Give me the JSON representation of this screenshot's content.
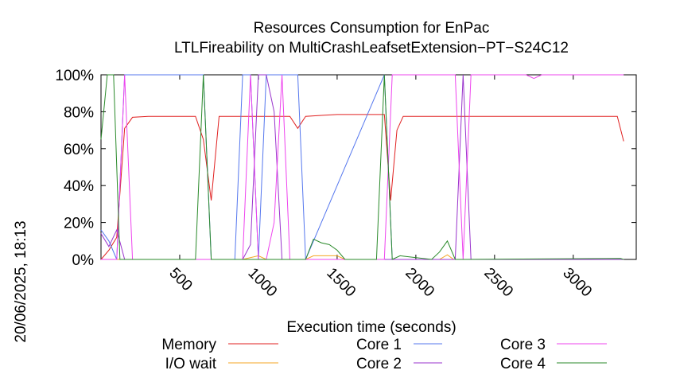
{
  "timestamp": "20/06/2025, 18:13",
  "chart_data": {
    "type": "line",
    "title": "Resources Consumption for EnPac",
    "subtitle": "LTLFireability on MultiCrashLeafsetExtension−PT−S24C12",
    "xlabel": "Execution time (seconds)",
    "ylabel": "",
    "xlim": [
      0,
      3400
    ],
    "ylim": [
      0,
      100
    ],
    "xticks": [
      500,
      1000,
      1500,
      2000,
      2500,
      3000
    ],
    "xtick_labels": [
      "500",
      "1000",
      "1500",
      "2000",
      "2500",
      "3000"
    ],
    "yticks": [
      0,
      20,
      40,
      60,
      80,
      100
    ],
    "ytick_labels": [
      "0%",
      "20%",
      "40%",
      "60%",
      "80%",
      "100%"
    ],
    "legend_placement": "bottom",
    "series": [
      {
        "name": "Memory",
        "color": "#e02020",
        "x": [
          0,
          50,
          100,
          150,
          200,
          300,
          400,
          500,
          600,
          650,
          700,
          750,
          800,
          900,
          1000,
          1100,
          1200,
          1250,
          1300,
          1400,
          1500,
          1600,
          1700,
          1800,
          1840,
          1880,
          1920,
          2000,
          2100,
          2200,
          2300,
          2400,
          2500,
          2600,
          2700,
          2800,
          2900,
          3000,
          3100,
          3200,
          3280,
          3320
        ],
        "y": [
          0,
          5,
          12,
          71,
          77,
          77.5,
          77.5,
          77.5,
          77.5,
          65,
          32,
          77.5,
          77.5,
          77.5,
          77.5,
          77.5,
          77.5,
          71,
          77.5,
          78,
          78.5,
          78.5,
          78.5,
          78.5,
          32,
          70,
          77.5,
          77.5,
          77.5,
          77.5,
          77.5,
          77.5,
          77.5,
          77.5,
          77.5,
          77.5,
          77.5,
          77.5,
          77.5,
          77.5,
          77.5,
          64
        ]
      },
      {
        "name": "I/O wait",
        "color": "#f5a623",
        "x": [
          0,
          100,
          900,
          1000,
          1050,
          1300,
          1350,
          1500,
          1550,
          2150,
          2200,
          2240,
          2300,
          3320
        ],
        "y": [
          0,
          0,
          0,
          2,
          0,
          0,
          2,
          2,
          0,
          0,
          2.5,
          0,
          0,
          0
        ]
      },
      {
        "name": "Core 1",
        "color": "#5577ee",
        "x": [
          0,
          50,
          100,
          150,
          200,
          650,
          700,
          850,
          900,
          950,
          1000,
          1050,
          1250,
          1300,
          1800,
          1850,
          1900,
          2350,
          2400,
          3320
        ],
        "y": [
          16,
          10,
          0,
          100,
          100,
          100,
          0,
          0,
          100,
          100,
          0,
          100,
          100,
          0,
          100,
          0,
          0,
          0,
          0,
          0
        ]
      },
      {
        "name": "Core 2",
        "color": "#9933cc",
        "x": [
          0,
          50,
          100,
          150,
          200,
          850,
          900,
          950,
          1000,
          1050,
          1100,
          1150,
          1200,
          1250,
          2250,
          2300,
          2350,
          3320
        ],
        "y": [
          14,
          7,
          16,
          0,
          0,
          0,
          0,
          8,
          100,
          100,
          80,
          0,
          0,
          0,
          0,
          100,
          0,
          0
        ]
      },
      {
        "name": "Core 3",
        "color": "#ee44ee",
        "x": [
          0,
          50,
          100,
          150,
          200,
          900,
          950,
          1000,
          1050,
          1100,
          1150,
          1200,
          1250,
          1800,
          1850,
          1900,
          2250,
          2300,
          2350,
          2700,
          2750,
          2800,
          3320
        ],
        "y": [
          0,
          0,
          0,
          100,
          0,
          0,
          100,
          0,
          0,
          20,
          100,
          0,
          0,
          0,
          100,
          100,
          100,
          0,
          100,
          100,
          98,
          100,
          100
        ]
      },
      {
        "name": "Core 4",
        "color": "#2a8a2a",
        "x": [
          0,
          40,
          80,
          120,
          160,
          600,
          650,
          700,
          1300,
          1350,
          1400,
          1450,
          1500,
          1550,
          1600,
          1750,
          1800,
          1850,
          1900,
          2100,
          2150,
          2200,
          2250,
          2300,
          3300,
          3320
        ],
        "y": [
          65,
          100,
          100,
          0,
          0,
          0,
          100,
          0,
          0,
          11,
          9,
          8,
          5,
          0,
          0,
          0,
          100,
          0,
          2,
          0,
          4,
          10,
          0,
          0,
          0.5,
          0
        ]
      }
    ]
  }
}
